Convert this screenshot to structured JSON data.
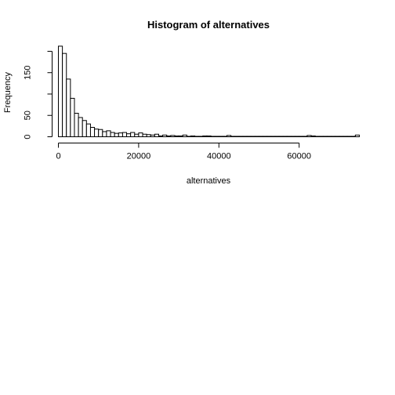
{
  "chart_data": {
    "type": "bar",
    "subtype": "histogram",
    "title": "Histogram of alternatives",
    "xlabel": "alternatives",
    "ylabel": "Frequency",
    "bin_width": 1000,
    "x_range": [
      0,
      75000
    ],
    "ylim": [
      0,
      210
    ],
    "x_ticks": [
      0,
      20000,
      40000,
      60000
    ],
    "x_tick_labels": [
      "0",
      "20000",
      "40000",
      "60000"
    ],
    "y_ticks": [
      0,
      50,
      100,
      150,
      200
    ],
    "y_tick_labels": [
      "0",
      "50",
      "",
      "150",
      ""
    ],
    "bin_starts": [
      0,
      1000,
      2000,
      3000,
      4000,
      5000,
      6000,
      7000,
      8000,
      9000,
      10000,
      11000,
      12000,
      13000,
      14000,
      15000,
      16000,
      17000,
      18000,
      19000,
      20000,
      21000,
      22000,
      23000,
      24000,
      25000,
      26000,
      27000,
      28000,
      29000,
      30000,
      31000,
      32000,
      33000,
      34000,
      35000,
      36000,
      37000,
      38000,
      39000,
      40000,
      41000,
      42000,
      43000,
      44000,
      45000,
      46000,
      47000,
      48000,
      49000,
      50000,
      51000,
      52000,
      53000,
      54000,
      55000,
      56000,
      57000,
      58000,
      59000,
      60000,
      61000,
      62000,
      63000,
      64000,
      65000,
      66000,
      67000,
      68000,
      69000,
      70000,
      71000,
      72000,
      73000,
      74000
    ],
    "counts": [
      212,
      195,
      135,
      90,
      55,
      45,
      38,
      30,
      22,
      18,
      17,
      12,
      14,
      10,
      8,
      9,
      10,
      7,
      10,
      6,
      9,
      6,
      5,
      4,
      6,
      2,
      4,
      2,
      3,
      2,
      2,
      4,
      1,
      2,
      1,
      1,
      2,
      2,
      1,
      1,
      1,
      1,
      3,
      1,
      1,
      1,
      1,
      1,
      1,
      1,
      1,
      1,
      1,
      1,
      1,
      1,
      1,
      1,
      1,
      1,
      1,
      1,
      3,
      2,
      1,
      1,
      1,
      1,
      1,
      1,
      1,
      1,
      1,
      1,
      4
    ],
    "grid": false,
    "legend": "none"
  }
}
